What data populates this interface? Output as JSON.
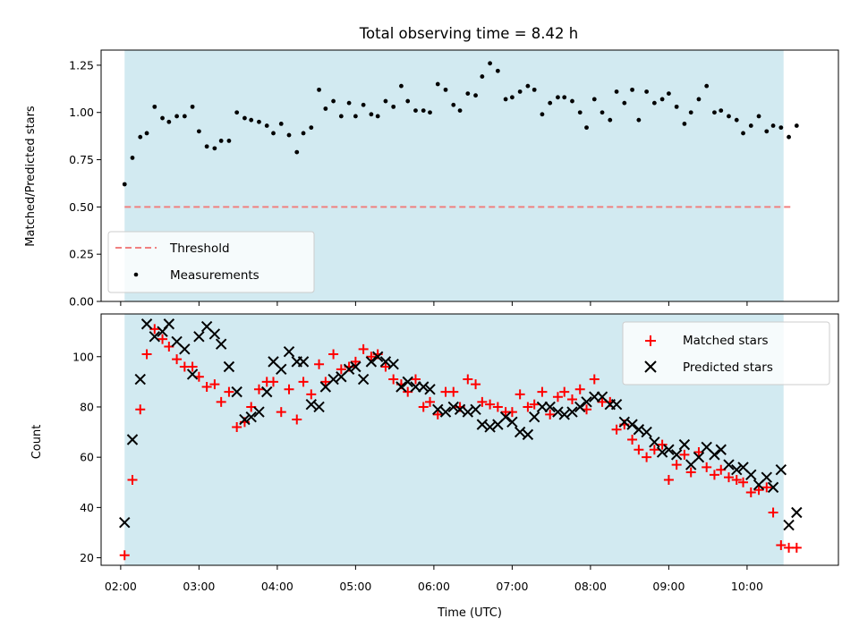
{
  "title": "Total observing time = 8.42 h",
  "colors": {
    "shade": "#add8e6",
    "threshold": "#f08080",
    "measurement": "#000000",
    "matched": "#ff0000",
    "predicted": "#000000"
  },
  "chart_data": [
    {
      "type": "scatter",
      "title": "Total observing time = 8.42 h",
      "xlabel": "",
      "ylabel": "Matched/Predicted stars",
      "xlim": [
        "01:45",
        "11:10"
      ],
      "ylim": [
        0,
        1.33
      ],
      "yticks": [
        "0.00",
        "0.25",
        "0.50",
        "0.75",
        "1.00",
        "1.25"
      ],
      "xticks": [
        "02:00",
        "03:00",
        "04:00",
        "05:00",
        "06:00",
        "07:00",
        "08:00",
        "09:00",
        "10:00"
      ],
      "observing_window": [
        "02:03",
        "10:28"
      ],
      "legend_position": "lower-left",
      "threshold": {
        "name": "Threshold",
        "value": 0.5,
        "style": "dashed",
        "x_range": [
          "02:03",
          "10:35"
        ]
      },
      "series": [
        {
          "name": "Measurements",
          "x": [
            "02:03",
            "02:09",
            "02:15",
            "02:20",
            "02:26",
            "02:32",
            "02:37",
            "02:43",
            "02:49",
            "02:55",
            "03:00",
            "03:06",
            "03:12",
            "03:17",
            "03:23",
            "03:29",
            "03:35",
            "03:40",
            "03:46",
            "03:52",
            "03:57",
            "04:03",
            "04:09",
            "04:15",
            "04:20",
            "04:26",
            "04:32",
            "04:37",
            "04:43",
            "04:49",
            "04:55",
            "05:00",
            "05:06",
            "05:12",
            "05:17",
            "05:23",
            "05:29",
            "05:35",
            "05:40",
            "05:46",
            "05:52",
            "05:57",
            "06:03",
            "06:09",
            "06:15",
            "06:20",
            "06:26",
            "06:32",
            "06:37",
            "06:43",
            "06:49",
            "06:55",
            "07:00",
            "07:06",
            "07:12",
            "07:17",
            "07:23",
            "07:29",
            "07:35",
            "07:40",
            "07:46",
            "07:52",
            "07:57",
            "08:03",
            "08:09",
            "08:15",
            "08:20",
            "08:26",
            "08:32",
            "08:37",
            "08:43",
            "08:49",
            "08:55",
            "09:00",
            "09:06",
            "09:12",
            "09:17",
            "09:23",
            "09:29",
            "09:35",
            "09:40",
            "09:46",
            "09:52",
            "09:57",
            "10:03",
            "10:09",
            "10:15",
            "10:20",
            "10:26",
            "10:32",
            "10:38"
          ],
          "y": [
            0.62,
            0.76,
            0.87,
            0.89,
            1.03,
            0.97,
            0.95,
            0.98,
            0.98,
            1.03,
            0.9,
            0.82,
            0.81,
            0.85,
            0.85,
            1.0,
            0.97,
            0.96,
            0.95,
            0.93,
            0.89,
            0.94,
            0.88,
            0.79,
            0.89,
            0.92,
            1.12,
            1.02,
            1.06,
            0.98,
            1.05,
            0.98,
            1.04,
            0.99,
            0.98,
            1.06,
            1.03,
            1.14,
            1.06,
            1.01,
            1.01,
            1.0,
            1.15,
            1.12,
            1.04,
            1.01,
            1.1,
            1.09,
            1.19,
            1.26,
            1.22,
            1.07,
            1.08,
            1.11,
            1.14,
            1.12,
            0.99,
            1.05,
            1.08,
            1.08,
            1.06,
            1.0,
            0.92,
            1.07,
            1.0,
            0.96,
            1.11,
            1.05,
            1.12,
            0.96,
            1.11,
            1.05,
            1.07,
            1.1,
            1.03,
            0.94,
            1.0,
            1.07,
            1.14,
            1.0,
            1.01,
            0.98,
            0.96,
            0.89,
            0.93,
            0.98,
            0.9,
            0.93,
            0.92,
            0.87,
            0.93
          ]
        }
      ]
    },
    {
      "type": "scatter",
      "xlabel": "Time (UTC)",
      "ylabel": "Count",
      "xlim": [
        "01:45",
        "11:10"
      ],
      "ylim": [
        17,
        117
      ],
      "yticks": [
        "20",
        "40",
        "60",
        "80",
        "100"
      ],
      "xticks": [
        "02:00",
        "03:00",
        "04:00",
        "05:00",
        "06:00",
        "07:00",
        "08:00",
        "09:00",
        "10:00"
      ],
      "observing_window": [
        "02:03",
        "10:28"
      ],
      "legend_position": "upper-right",
      "series": [
        {
          "name": "Matched stars",
          "marker": "+",
          "x": [
            "02:03",
            "02:09",
            "02:15",
            "02:20",
            "02:26",
            "02:32",
            "02:37",
            "02:43",
            "02:49",
            "02:55",
            "03:00",
            "03:06",
            "03:12",
            "03:17",
            "03:23",
            "03:29",
            "03:35",
            "03:40",
            "03:46",
            "03:52",
            "03:57",
            "04:03",
            "04:09",
            "04:15",
            "04:20",
            "04:26",
            "04:32",
            "04:37",
            "04:43",
            "04:49",
            "04:55",
            "05:00",
            "05:06",
            "05:12",
            "05:17",
            "05:23",
            "05:29",
            "05:35",
            "05:40",
            "05:46",
            "05:52",
            "05:57",
            "06:03",
            "06:09",
            "06:15",
            "06:20",
            "06:26",
            "06:32",
            "06:37",
            "06:43",
            "06:49",
            "06:55",
            "07:00",
            "07:06",
            "07:12",
            "07:17",
            "07:23",
            "07:29",
            "07:35",
            "07:40",
            "07:46",
            "07:52",
            "07:57",
            "08:03",
            "08:09",
            "08:15",
            "08:20",
            "08:26",
            "08:32",
            "08:37",
            "08:43",
            "08:49",
            "08:55",
            "09:00",
            "09:06",
            "09:12",
            "09:17",
            "09:23",
            "09:29",
            "09:35",
            "09:40",
            "09:46",
            "09:52",
            "09:57",
            "10:03",
            "10:09",
            "10:15",
            "10:20",
            "10:26",
            "10:32",
            "10:38"
          ],
          "y": [
            21,
            51,
            79,
            101,
            111,
            107,
            104,
            99,
            96,
            96,
            92,
            88,
            89,
            82,
            86,
            72,
            74,
            80,
            87,
            90,
            90,
            78,
            87,
            75,
            90,
            85,
            97,
            90,
            101,
            95,
            96,
            98,
            103,
            100,
            101,
            96,
            91,
            89,
            86,
            91,
            80,
            82,
            77,
            86,
            86,
            80,
            91,
            89,
            82,
            81,
            80,
            78,
            78,
            85,
            80,
            81,
            86,
            77,
            84,
            86,
            83,
            87,
            79,
            91,
            82,
            82,
            71,
            73,
            67,
            63,
            60,
            63,
            65,
            51,
            57,
            61,
            54,
            62,
            56,
            53,
            55,
            52,
            51,
            50,
            46,
            47,
            48,
            38,
            25,
            24,
            24
          ]
        },
        {
          "name": "Predicted stars",
          "marker": "x",
          "x": [
            "02:03",
            "02:09",
            "02:15",
            "02:20",
            "02:26",
            "02:32",
            "02:37",
            "02:43",
            "02:49",
            "02:55",
            "03:00",
            "03:06",
            "03:12",
            "03:17",
            "03:23",
            "03:29",
            "03:35",
            "03:40",
            "03:46",
            "03:52",
            "03:57",
            "04:03",
            "04:09",
            "04:15",
            "04:20",
            "04:26",
            "04:32",
            "04:37",
            "04:43",
            "04:49",
            "04:55",
            "05:00",
            "05:06",
            "05:12",
            "05:17",
            "05:23",
            "05:29",
            "05:35",
            "05:40",
            "05:46",
            "05:52",
            "05:57",
            "06:03",
            "06:09",
            "06:15",
            "06:20",
            "06:26",
            "06:32",
            "06:37",
            "06:43",
            "06:49",
            "06:55",
            "07:00",
            "07:06",
            "07:12",
            "07:17",
            "07:23",
            "07:29",
            "07:35",
            "07:40",
            "07:46",
            "07:52",
            "07:57",
            "08:03",
            "08:09",
            "08:15",
            "08:20",
            "08:26",
            "08:32",
            "08:37",
            "08:43",
            "08:49",
            "08:55",
            "09:00",
            "09:06",
            "09:12",
            "09:17",
            "09:23",
            "09:29",
            "09:35",
            "09:40",
            "09:46",
            "09:52",
            "09:57",
            "10:03",
            "10:09",
            "10:15",
            "10:20",
            "10:26",
            "10:32",
            "10:38"
          ],
          "y": [
            34,
            67,
            91,
            113,
            108,
            110,
            113,
            106,
            103,
            93,
            108,
            112,
            109,
            105,
            96,
            86,
            75,
            76,
            78,
            86,
            98,
            95,
            102,
            98,
            98,
            81,
            80,
            88,
            91,
            92,
            95,
            96,
            91,
            98,
            100,
            98,
            97,
            88,
            90,
            88,
            88,
            87,
            79,
            78,
            80,
            79,
            78,
            79,
            73,
            72,
            73,
            76,
            74,
            70,
            69,
            76,
            80,
            80,
            78,
            77,
            78,
            80,
            82,
            84,
            84,
            81,
            81,
            74,
            73,
            71,
            70,
            66,
            62,
            63,
            61,
            65,
            57,
            60,
            64,
            61,
            63,
            57,
            55,
            56,
            53,
            49,
            52,
            48,
            55,
            33,
            38
          ]
        }
      ]
    }
  ]
}
